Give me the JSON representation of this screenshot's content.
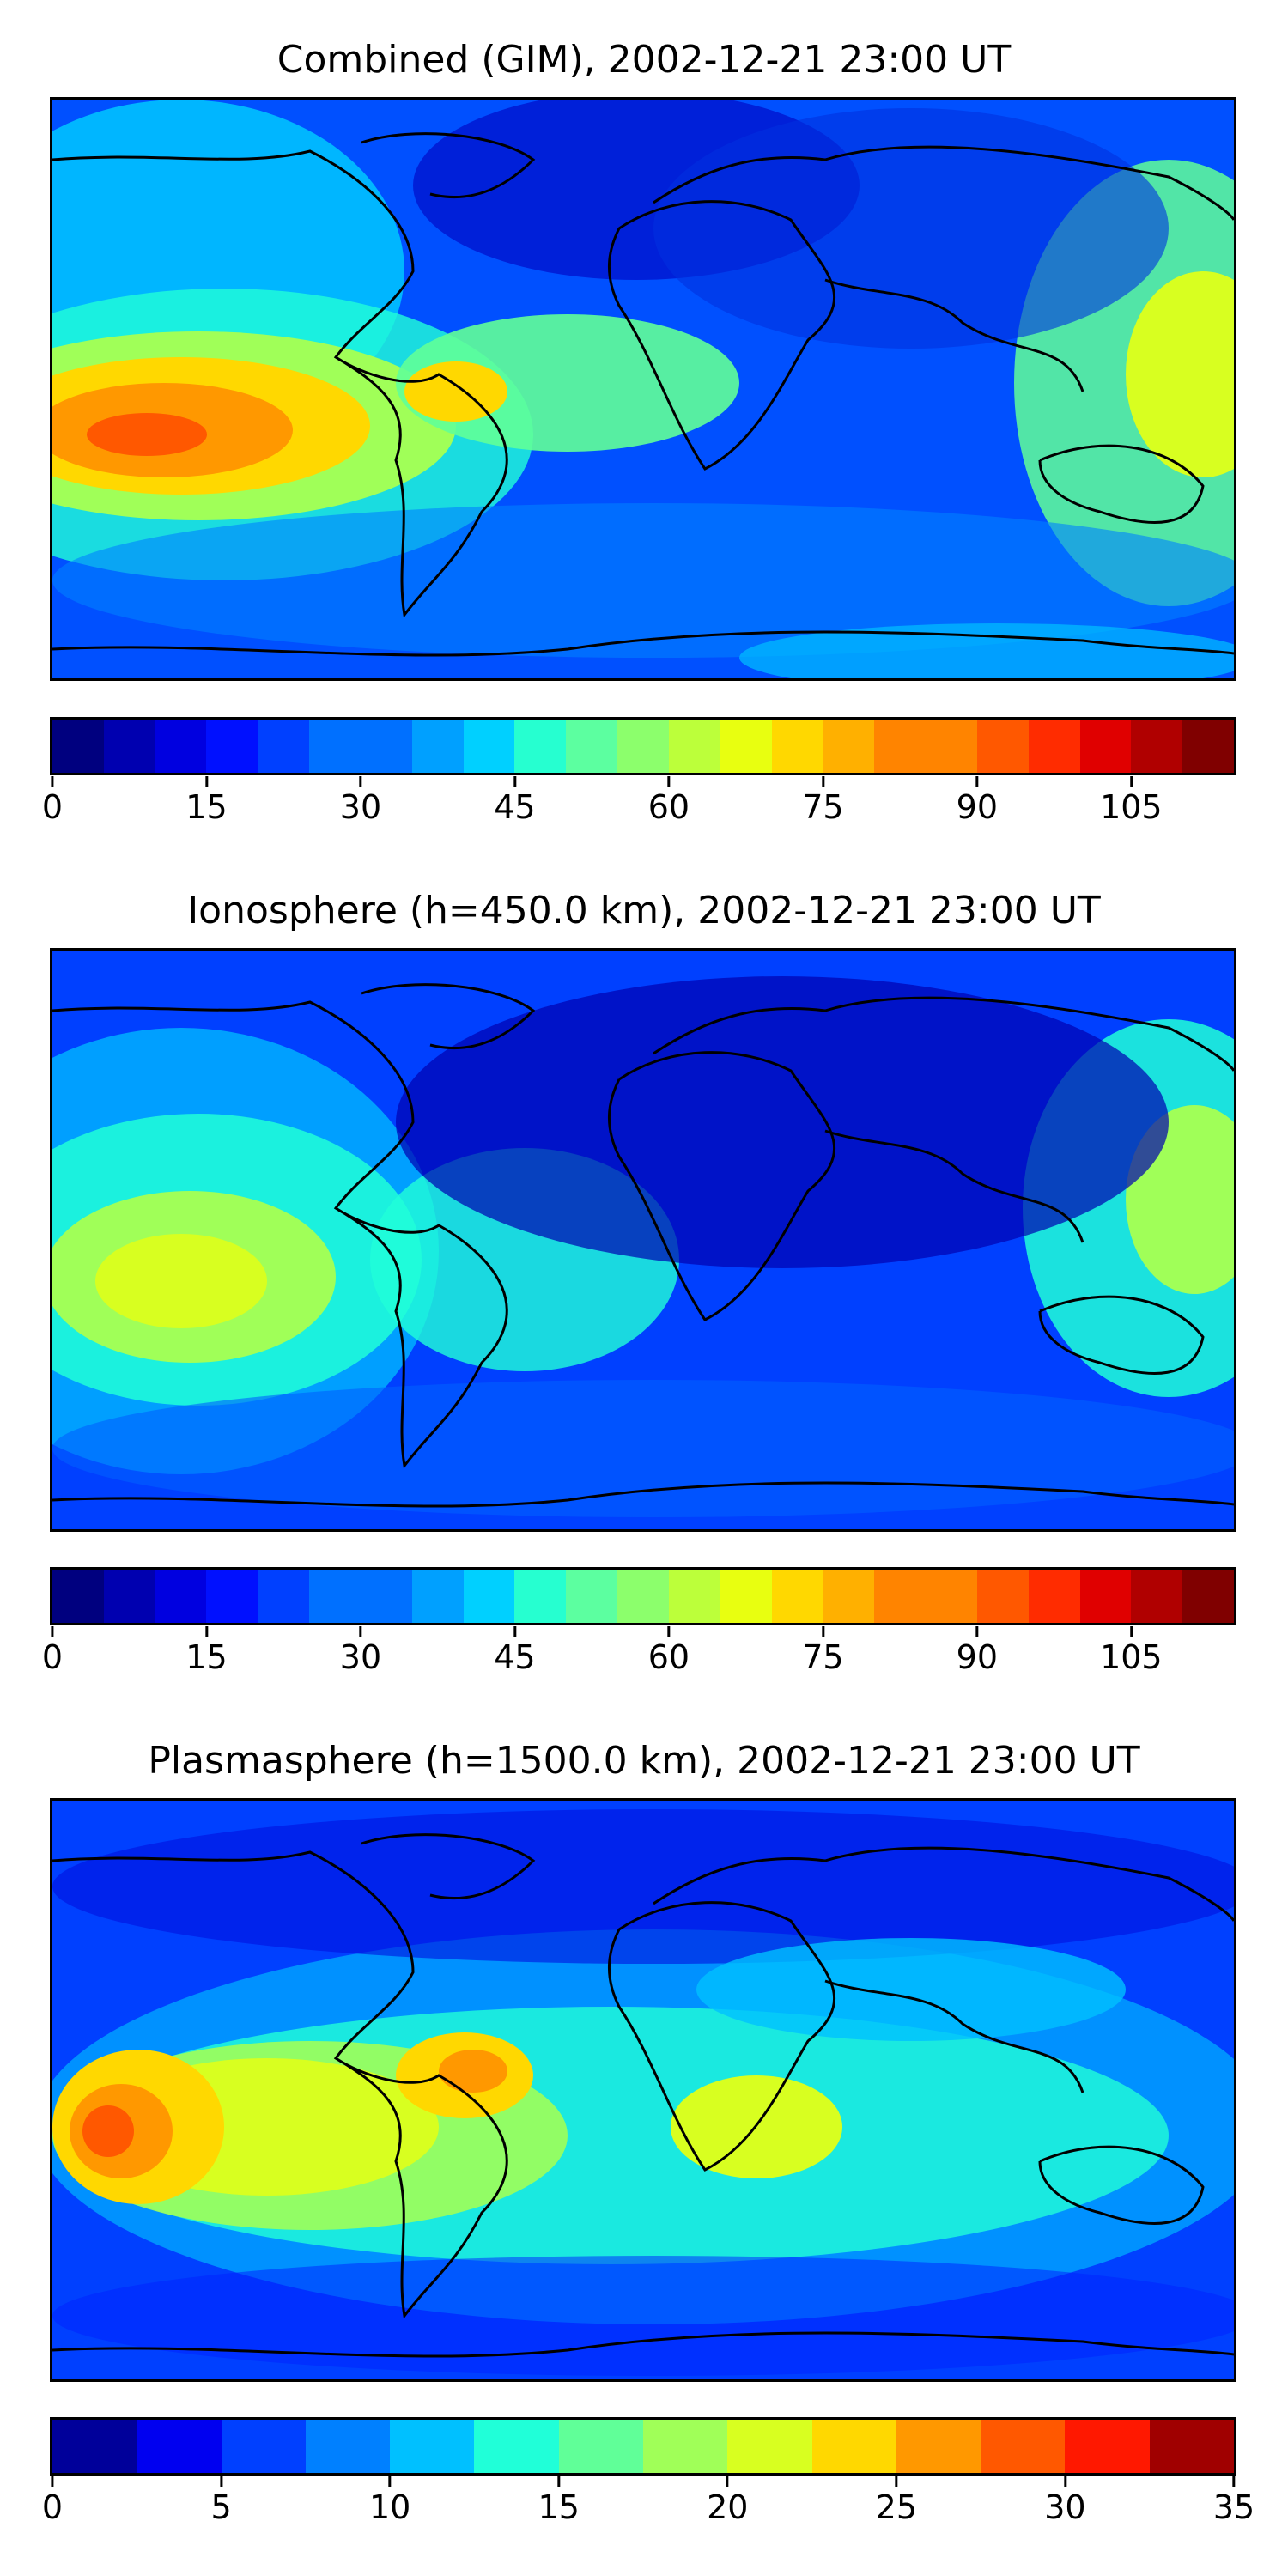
{
  "colors": {
    "jet": [
      "#00007f",
      "#0000b0",
      "#0000e0",
      "#0010ff",
      "#0040ff",
      "#0070ff",
      "#00a0ff",
      "#00d0ff",
      "#26ffd0",
      "#5cffa0",
      "#8cff6c",
      "#bcff3a",
      "#e8ff10",
      "#ffd800",
      "#ffb000",
      "#ff8400",
      "#ff5800",
      "#ff2c00",
      "#e00000",
      "#b00000",
      "#800000"
    ],
    "jet14": [
      "#00009a",
      "#0000f0",
      "#0040ff",
      "#0080ff",
      "#00c0ff",
      "#20ffd8",
      "#60ff98",
      "#a0ff58",
      "#d8ff20",
      "#ffd800",
      "#ff9800",
      "#ff5800",
      "#ff1800",
      "#a00000"
    ]
  },
  "panels": [
    {
      "title": "Combined (GIM), 2002-12-21 23:00 UT",
      "map_name": "combined-gim",
      "colorbar_ticks": [
        "0",
        "15",
        "30",
        "45",
        "60",
        "75",
        "90",
        "105"
      ],
      "colorbar_range": [
        0,
        115
      ],
      "colorbar_levels": 23
    },
    {
      "title": "Ionosphere  (h=450.0 km), 2002-12-21 23:00 UT",
      "map_name": "ionosphere",
      "colorbar_ticks": [
        "0",
        "15",
        "30",
        "45",
        "60",
        "75",
        "90",
        "105"
      ],
      "colorbar_range": [
        0,
        115
      ],
      "colorbar_levels": 23
    },
    {
      "title": "Plasmasphere (h=1500.0 km), 2002-12-21 23:00 UT",
      "map_name": "plasmasphere",
      "colorbar_ticks": [
        "0",
        "5",
        "10",
        "15",
        "20",
        "25",
        "30",
        "35"
      ],
      "colorbar_range": [
        0,
        35
      ],
      "colorbar_levels": 14
    }
  ]
}
